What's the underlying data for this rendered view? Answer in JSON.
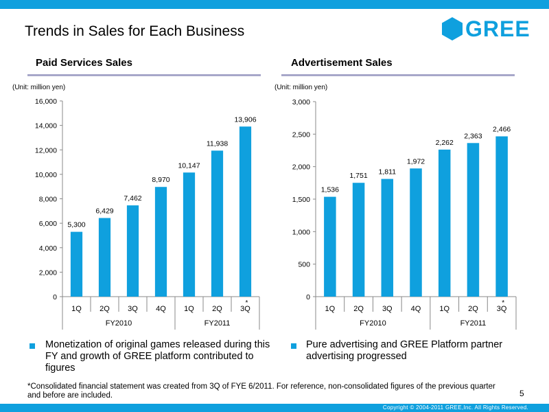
{
  "slide": {
    "title": "Trends in Sales for Each Business",
    "logo_text": "GREE",
    "copyright": "Copyright © 2004-2011 GREE,Inc. All Rights Reserved.",
    "page_number": "5",
    "footnote": "*Consolidated financial statement was created from 3Q of FYE 6/2011. For reference, non-consolidated figures of the previous quarter and before are included.",
    "accent_color": "#0fa0de"
  },
  "left": {
    "section_title": "Paid Services Sales",
    "unit": "(Unit: million yen)",
    "bullet": "Monetization of original games released during this FY and growth of GREE platform contributed to figures"
  },
  "right": {
    "section_title": "Advertisement Sales",
    "unit": "(Unit: million yen)",
    "bullet": "Pure advertising and GREE Platform partner advertising progressed"
  },
  "chart_data": [
    {
      "type": "bar",
      "title": "Paid Services Sales",
      "ylabel": "(Unit: million yen)",
      "categories": [
        "1Q",
        "2Q",
        "3Q",
        "4Q",
        "1Q",
        "2Q",
        "3Q"
      ],
      "groups": [
        {
          "label": "FY2010",
          "count": 4
        },
        {
          "label": "FY2011",
          "count": 3
        }
      ],
      "values": [
        5300,
        6429,
        7462,
        8970,
        10147,
        11938,
        13906
      ],
      "data_labels": [
        "5,300",
        "6,429",
        "7,462",
        "8,970",
        "10,147",
        "11,938",
        "13,906"
      ],
      "yticks": [
        "0",
        "2,000",
        "4,000",
        "6,000",
        "8,000",
        "10,000",
        "12,000",
        "14,000",
        "16,000"
      ],
      "ylim": [
        0,
        16000
      ],
      "marked_category_index": 6,
      "marker": "*",
      "bar_color": "#0fa0de"
    },
    {
      "type": "bar",
      "title": "Advertisement Sales",
      "ylabel": "(Unit: million yen)",
      "categories": [
        "1Q",
        "2Q",
        "3Q",
        "4Q",
        "1Q",
        "2Q",
        "3Q"
      ],
      "groups": [
        {
          "label": "FY2010",
          "count": 4
        },
        {
          "label": "FY2011",
          "count": 3
        }
      ],
      "values": [
        1536,
        1751,
        1811,
        1972,
        2262,
        2363,
        2466
      ],
      "data_labels": [
        "1,536",
        "1,751",
        "1,811",
        "1,972",
        "2,262",
        "2,363",
        "2,466"
      ],
      "yticks": [
        "0",
        "500",
        "1,000",
        "1,500",
        "2,000",
        "2,500",
        "3,000"
      ],
      "ylim": [
        0,
        3000
      ],
      "marked_category_index": 6,
      "marker": "*",
      "bar_color": "#0fa0de"
    }
  ]
}
